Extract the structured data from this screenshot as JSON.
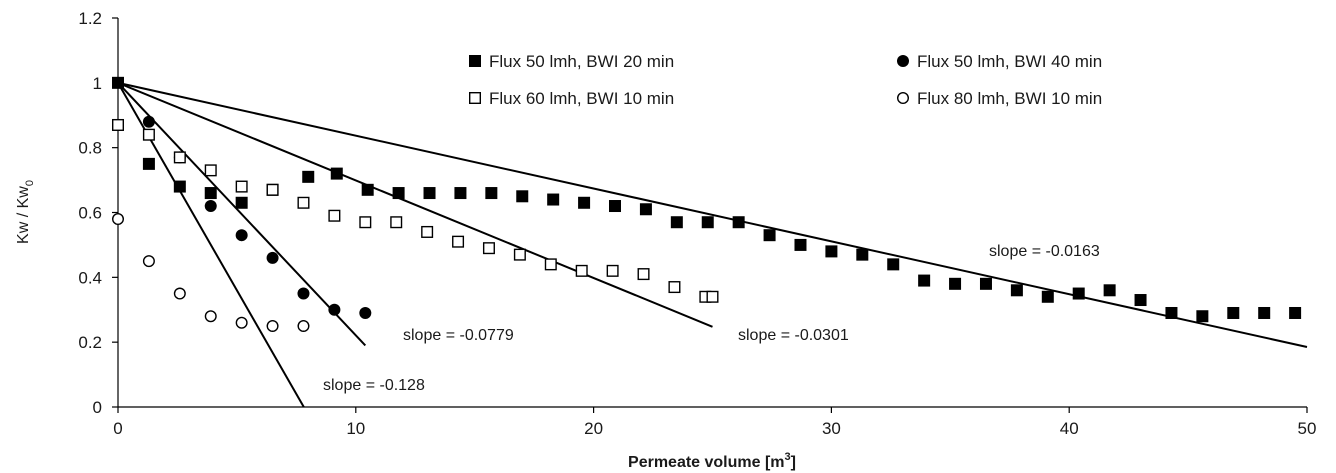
{
  "chart_data": {
    "type": "scatter",
    "title": "",
    "xlabel": "Permeate volume [m",
    "xlabel_sup": "3",
    "xlabel_end": "]",
    "ylabel": "Kw / Kw",
    "ylabel_sub": "0",
    "xlim": [
      0,
      50
    ],
    "ylim": [
      0,
      1.2
    ],
    "xticks": [
      "0",
      "10",
      "20",
      "30",
      "40",
      "50"
    ],
    "yticks": [
      "0",
      "0.2",
      "0.4",
      "0.6",
      "0.8",
      "1",
      "1.2"
    ],
    "xtick_values": [
      0,
      10,
      20,
      30,
      40,
      50
    ],
    "ytick_values": [
      0,
      0.2,
      0.4,
      0.6,
      0.8,
      1,
      1.2
    ],
    "grid": false,
    "legend_position": "top-right",
    "series": [
      {
        "name": "Flux 50 lmh, BWI 20 min",
        "marker": "filled-square",
        "x": [
          0,
          1.3,
          2.6,
          3.9,
          5.2,
          6.5,
          8,
          9.2,
          10.5,
          11.8,
          13.1,
          14.4,
          15.7,
          17,
          18.3,
          19.6,
          20.9,
          22.2,
          23.5,
          24.8,
          26.1,
          27.4,
          28.7,
          30,
          31.3,
          32.6,
          33.9,
          35.2,
          36.5,
          37.8,
          39.1,
          40.4,
          41.7,
          43,
          44.3,
          45.6,
          46.9,
          48.2,
          49.5
        ],
        "y": [
          1,
          0.75,
          0.68,
          0.66,
          0.63,
          0.67,
          0.71,
          0.72,
          0.67,
          0.66,
          0.66,
          0.66,
          0.66,
          0.65,
          0.64,
          0.63,
          0.62,
          0.61,
          0.57,
          0.57,
          0.57,
          0.53,
          0.5,
          0.48,
          0.47,
          0.44,
          0.39,
          0.38,
          0.38,
          0.36,
          0.34,
          0.35,
          0.36,
          0.33,
          0.29,
          0.28,
          0.29,
          0.29,
          0.29
        ]
      },
      {
        "name": "Flux 50 lmh, BWI 40 min",
        "marker": "filled-circle",
        "x": [
          0,
          1.3,
          2.6,
          3.9,
          5.2,
          6.5,
          7.8,
          9.1,
          10.4
        ],
        "y": [
          0.87,
          0.88,
          0.77,
          0.62,
          0.53,
          0.46,
          0.35,
          0.3,
          0.29
        ]
      },
      {
        "name": "Flux 60 lmh, BWI 10 min",
        "marker": "open-square",
        "x": [
          0,
          1.3,
          2.6,
          3.9,
          5.2,
          6.5,
          7.8,
          9.1,
          10.4,
          11.7,
          13,
          14.3,
          15.6,
          16.9,
          18.2,
          19.5,
          20.8,
          22.1,
          23.4,
          24.7,
          25
        ],
        "y": [
          0.87,
          0.84,
          0.77,
          0.73,
          0.68,
          0.67,
          0.63,
          0.59,
          0.57,
          0.57,
          0.54,
          0.51,
          0.49,
          0.47,
          0.44,
          0.42,
          0.42,
          0.41,
          0.37,
          0.34,
          0.34
        ]
      },
      {
        "name": "Flux 80 lmh, BWI 10 min",
        "marker": "open-circle",
        "x": [
          0,
          1.3,
          2.6,
          3.9,
          5.2,
          6.5,
          7.8
        ],
        "y": [
          0.58,
          0.45,
          0.35,
          0.28,
          0.26,
          0.25,
          0.25
        ]
      }
    ],
    "fit_lines": [
      {
        "label": "slope = -0.128",
        "slope": -0.128,
        "intercept": 1,
        "x_end": 7.81
      },
      {
        "label": "slope = -0.0779",
        "slope": -0.0779,
        "intercept": 1,
        "x_end": 10.4
      },
      {
        "label": "slope = -0.0301",
        "slope": -0.0301,
        "intercept": 1,
        "x_end": 25
      },
      {
        "label": "slope = -0.0163",
        "slope": -0.0163,
        "intercept": 1,
        "x_end": 50
      }
    ],
    "legend": [
      {
        "label": "Flux 50 lmh, BWI 20 min",
        "marker": "filled-square"
      },
      {
        "label": "Flux 50 lmh, BWI 40 min",
        "marker": "filled-circle"
      },
      {
        "label": "Flux 60 lmh, BWI 10 min",
        "marker": "open-square"
      },
      {
        "label": "Flux 80 lmh, BWI 10 min",
        "marker": "open-circle"
      }
    ],
    "colors": {
      "marker": "#000000",
      "line": "#000000",
      "text": "#1a1a1a"
    }
  }
}
